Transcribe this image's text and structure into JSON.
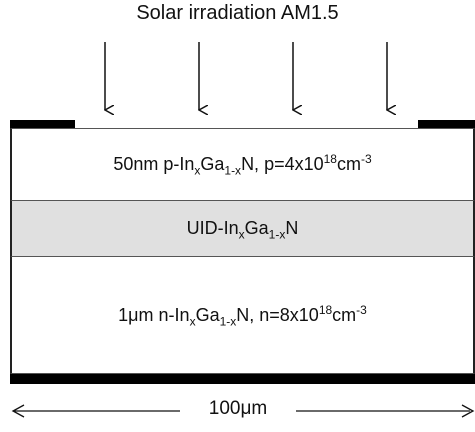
{
  "title": "Solar irradiation AM1.5",
  "layers": {
    "p": {
      "pre": "50nm p-In",
      "sub1": "x",
      "mid": "Ga",
      "sub2": "1-x",
      "post": "N, p=4x10",
      "exp1": "18",
      "unit": "cm",
      "exp2": "-3"
    },
    "uid": {
      "pre": "UID-In",
      "sub1": "x",
      "mid": "Ga",
      "sub2": "1-x",
      "post": "N"
    },
    "n": {
      "pre": "1μm n-In",
      "sub1": "x",
      "mid": "Ga",
      "sub2": "1-x",
      "post": "N, n=8x10",
      "exp1": "18",
      "unit": "cm",
      "exp2": "-3"
    }
  },
  "width_label": "100μm"
}
